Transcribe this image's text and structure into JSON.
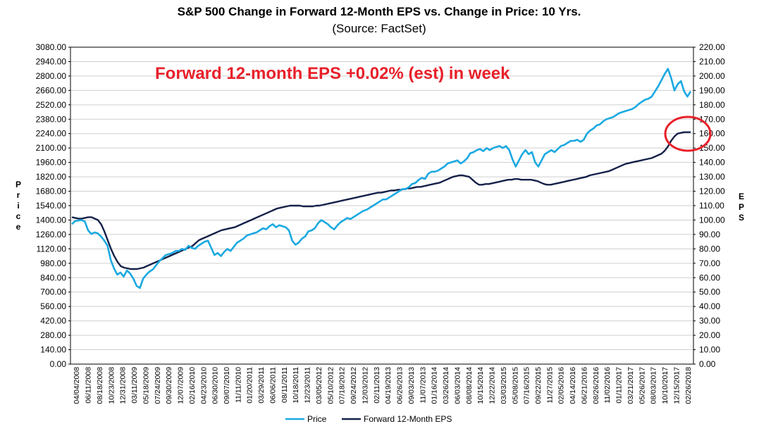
{
  "chart_data": {
    "type": "line",
    "title": "S&P 500 Change in Forward 12-Month EPS vs. Change in Price: 10 Yrs.",
    "subtitle": "(Source: FactSet)",
    "annotation": "Forward 12-month EPS +0.02% (est) in week",
    "ylabel_left": "Price",
    "ylabel_right": "EPS",
    "ylim_left": [
      0,
      3080
    ],
    "ylim_right": [
      0,
      220
    ],
    "yticks_left": [
      "0.00",
      "140.00",
      "280.00",
      "420.00",
      "560.00",
      "700.00",
      "840.00",
      "980.00",
      "1120.00",
      "1260.00",
      "1400.00",
      "1540.00",
      "1680.00",
      "1820.00",
      "1960.00",
      "2100.00",
      "2240.00",
      "2380.00",
      "2520.00",
      "2660.00",
      "2800.00",
      "2940.00",
      "3080.00"
    ],
    "yticks_right": [
      "0.00",
      "10.00",
      "20.00",
      "30.00",
      "40.00",
      "50.00",
      "60.00",
      "70.00",
      "80.00",
      "90.00",
      "100.00",
      "110.00",
      "120.00",
      "130.00",
      "140.00",
      "150.00",
      "160.00",
      "170.00",
      "180.00",
      "190.00",
      "200.00",
      "210.00",
      "220.00"
    ],
    "x_ticks": [
      "04/04/2008",
      "06/11/2008",
      "08/18/2008",
      "10/23/2008",
      "12/31/2008",
      "03/11/2009",
      "05/18/2009",
      "07/24/2009",
      "09/30/2009",
      "12/07/2009",
      "02/16/2010",
      "04/23/2010",
      "06/30/2010",
      "09/07/2010",
      "11/11/2010",
      "01/20/2011",
      "03/29/2011",
      "06/06/2011",
      "08/11/2011",
      "10/18/2011",
      "12/23/2011",
      "03/05/2012",
      "05/10/2012",
      "07/18/2012",
      "09/24/2012",
      "12/03/2012",
      "02/11/2013",
      "04/19/2013",
      "06/26/2013",
      "09/03/2013",
      "11/07/2013",
      "01/16/2014",
      "03/26/2014",
      "06/03/2014",
      "08/08/2014",
      "10/15/2014",
      "12/22/2014",
      "03/03/2015",
      "05/08/2015",
      "07/16/2015",
      "09/22/2015",
      "11/27/2015",
      "02/05/2016",
      "04/14/2016",
      "06/21/2016",
      "08/26/2016",
      "11/02/2016",
      "01/11/2017",
      "03/21/2017",
      "05/26/2017",
      "08/03/2017",
      "10/10/2017",
      "12/15/2017",
      "02/26/2018"
    ],
    "series": [
      {
        "name": "Price",
        "color": "#1ba9e1",
        "axis": "left",
        "values": [
          1360,
          1390,
          1395,
          1400,
          1385,
          1300,
          1265,
          1280,
          1270,
          1240,
          1200,
          1150,
          1010,
          930,
          870,
          890,
          850,
          910,
          880,
          830,
          760,
          740,
          830,
          870,
          900,
          920,
          960,
          1000,
          1030,
          1060,
          1070,
          1080,
          1100,
          1100,
          1120,
          1110,
          1150,
          1130,
          1120,
          1150,
          1170,
          1190,
          1200,
          1130,
          1060,
          1080,
          1050,
          1090,
          1120,
          1100,
          1140,
          1180,
          1200,
          1220,
          1250,
          1260,
          1270,
          1280,
          1300,
          1320,
          1310,
          1340,
          1360,
          1330,
          1350,
          1340,
          1330,
          1300,
          1200,
          1160,
          1180,
          1220,
          1240,
          1290,
          1300,
          1320,
          1370,
          1400,
          1380,
          1360,
          1330,
          1310,
          1350,
          1380,
          1400,
          1420,
          1410,
          1430,
          1450,
          1470,
          1490,
          1500,
          1520,
          1540,
          1560,
          1580,
          1600,
          1600,
          1620,
          1640,
          1660,
          1680,
          1700,
          1700,
          1720,
          1750,
          1760,
          1790,
          1810,
          1800,
          1850,
          1870,
          1870,
          1880,
          1900,
          1920,
          1950,
          1960,
          1970,
          1980,
          1950,
          1970,
          2000,
          2050,
          2060,
          2080,
          2090,
          2070,
          2100,
          2080,
          2100,
          2110,
          2120,
          2100,
          2120,
          2080,
          1990,
          1920,
          1980,
          2040,
          2080,
          2040,
          2060,
          1960,
          1920,
          1980,
          2040,
          2060,
          2080,
          2060,
          2090,
          2120,
          2130,
          2150,
          2170,
          2170,
          2180,
          2160,
          2180,
          2240,
          2270,
          2290,
          2320,
          2330,
          2360,
          2380,
          2390,
          2400,
          2420,
          2440,
          2450,
          2460,
          2470,
          2480,
          2500,
          2530,
          2550,
          2570,
          2580,
          2600,
          2650,
          2700,
          2760,
          2820,
          2870,
          2780,
          2660,
          2720,
          2750,
          2650,
          2600,
          2650
        ]
      },
      {
        "name": "Forward 12-Month EPS",
        "color": "#142149",
        "axis": "right",
        "values": [
          102,
          101.5,
          101,
          101,
          101.5,
          102,
          102,
          101,
          100,
          97,
          92,
          86,
          80,
          75,
          71,
          68,
          67,
          66.5,
          66,
          66,
          66,
          66.5,
          67,
          68,
          69,
          70,
          71,
          72,
          73,
          74,
          75,
          76,
          77,
          78,
          79,
          80,
          81,
          82,
          84,
          86,
          87,
          88,
          89,
          90,
          91,
          92,
          93,
          93.5,
          94,
          94.5,
          95,
          96,
          97,
          98,
          99,
          100,
          101,
          102,
          103,
          104,
          105,
          106,
          107,
          108,
          108.5,
          109,
          109.5,
          110,
          110,
          110,
          110,
          109.5,
          109.5,
          109.5,
          109.5,
          110,
          110,
          110.5,
          111,
          111.5,
          112,
          112.5,
          113,
          113.5,
          114,
          114.5,
          115,
          115.5,
          116,
          116.5,
          117,
          117.5,
          118,
          118.5,
          119,
          119,
          119.5,
          120,
          120.5,
          120.5,
          121,
          121,
          121.5,
          122,
          122,
          122.5,
          123,
          123,
          123.5,
          124,
          124.5,
          125,
          125.5,
          126,
          127,
          128,
          129,
          130,
          130.5,
          131,
          131,
          130.5,
          130,
          128,
          126,
          124.5,
          124.5,
          125,
          125,
          125.5,
          126,
          126.5,
          127,
          127.5,
          128,
          128,
          128.5,
          128.5,
          128,
          128,
          128,
          128,
          127.5,
          127,
          126,
          125,
          124.5,
          124.5,
          125,
          125.5,
          126,
          126.5,
          127,
          127.5,
          128,
          128.5,
          129,
          129.5,
          130,
          131,
          131.5,
          132,
          132.5,
          133,
          133.5,
          134,
          135,
          136,
          137,
          138,
          139,
          139.5,
          140,
          140.5,
          141,
          141.5,
          142,
          142.5,
          143,
          144,
          145,
          146,
          148,
          151,
          155,
          158,
          160,
          160.5,
          161,
          161,
          161
        ]
      }
    ],
    "legend": [
      "Price",
      "Forward 12-Month EPS"
    ],
    "legend_position": "bottom-center",
    "grid": true
  }
}
